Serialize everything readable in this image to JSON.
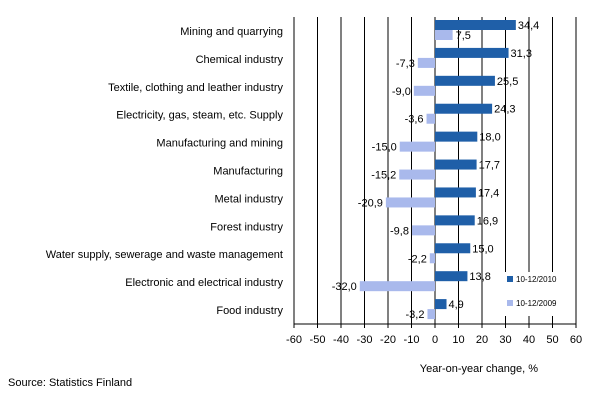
{
  "chart_data": {
    "type": "bar",
    "orientation": "horizontal",
    "categories": [
      "Mining and quarrying",
      "Chemical industry",
      "Textile, clothing and leather industry",
      "Electricity, gas, steam, etc. Supply",
      "Manufacturing and mining",
      "Manufacturing",
      "Metal industry",
      "Forest industry",
      "Water supply, sewerage and waste management",
      "Electronic and electrical industry",
      "Food industry"
    ],
    "series": [
      {
        "name": "10-12/2010",
        "color": "#1f5fa8",
        "values": [
          34.4,
          31.3,
          25.5,
          24.3,
          18.0,
          17.7,
          17.4,
          16.9,
          15.0,
          13.8,
          4.9
        ],
        "labels": [
          "34,4",
          "31,3",
          "25,5",
          "24,3",
          "18,0",
          "17,7",
          "17,4",
          "16,9",
          "15,0",
          "13,8",
          "4,9"
        ]
      },
      {
        "name": "10-12/2009",
        "color": "#a9b9ec",
        "values": [
          7.5,
          -7.3,
          -9.0,
          -3.6,
          -15.0,
          -15.2,
          -20.9,
          -9.8,
          -2.2,
          -32.0,
          -3.2
        ],
        "labels": [
          "7,5",
          "-7,3",
          "-9,0",
          "-3,6",
          "-15,0",
          "-15,2",
          "-20,9",
          "-9,8",
          "-2,2",
          "-32,0",
          "-3,2"
        ]
      }
    ],
    "xlabel": "Year-on-year change, %",
    "xlim": [
      -60,
      60
    ],
    "xticks": [
      -60,
      -50,
      -40,
      -30,
      -20,
      -10,
      0,
      10,
      20,
      30,
      40,
      50,
      60
    ],
    "grid": true,
    "legend_position": "bottom-right"
  },
  "source": "Source: Statistics Finland"
}
